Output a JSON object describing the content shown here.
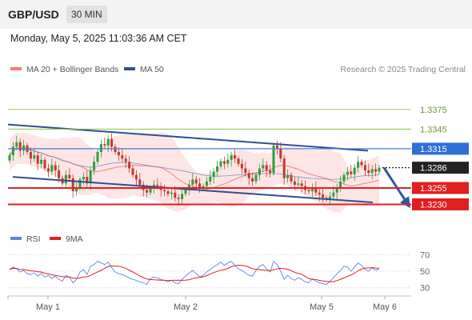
{
  "header": {
    "symbol": "GBP/USD",
    "interval": "30 MIN"
  },
  "datetime": "Monday, May 5, 2025 11:03:36 AM CET",
  "legend": {
    "ma20": "MA 20 + Bollinger Bands",
    "ma50": "MA 50",
    "credit": "Research © 2025 Trading Central"
  },
  "colors": {
    "up": "#2e9e3c",
    "down": "#c0392b",
    "ma20": "#f08080",
    "ma50": "#4a6fb5",
    "band": "#fde0e0",
    "channel": "#2f4f8f",
    "green_level": "#8fc14a",
    "blue_level": "#4a7bd8",
    "red_level": "#e02020",
    "arrow": "#2a5aa0",
    "rsi": "#5b86e5",
    "rsi_ma": "#e02020"
  },
  "chart_data": [
    {
      "type": "candlestick",
      "ylim": [
        1.32,
        1.342
      ],
      "x_ticks": [
        "May 1",
        "May 2",
        "May 5",
        "May 6"
      ],
      "series": [
        {
          "name": "MA 20 + Bollinger Bands"
        },
        {
          "name": "MA 50"
        }
      ],
      "ohlc_close": [
        1.3305,
        1.3318,
        1.3325,
        1.3312,
        1.332,
        1.331,
        1.33,
        1.3305,
        1.3292,
        1.3298,
        1.3285,
        1.328,
        1.329,
        1.3282,
        1.327,
        1.3262,
        1.3275,
        1.327,
        1.325,
        1.3255,
        1.3268,
        1.3272,
        1.3262,
        1.3282,
        1.3295,
        1.331,
        1.3322,
        1.332,
        1.333,
        1.3318,
        1.331,
        1.3305,
        1.33,
        1.3295,
        1.3285,
        1.3275,
        1.3268,
        1.326,
        1.3252,
        1.3248,
        1.3255,
        1.326,
        1.3258,
        1.3252,
        1.325,
        1.3246,
        1.3248,
        1.324,
        1.3238,
        1.3246,
        1.3252,
        1.326,
        1.3268,
        1.3262,
        1.3255,
        1.3258,
        1.3265,
        1.3272,
        1.328,
        1.3288,
        1.3296,
        1.3292,
        1.3298,
        1.3305,
        1.33,
        1.3292,
        1.3285,
        1.3278,
        1.327,
        1.3265,
        1.3275,
        1.3285,
        1.329,
        1.3282,
        1.3278,
        1.332,
        1.3315,
        1.33,
        1.327,
        1.3275,
        1.3265,
        1.326,
        1.3262,
        1.3258,
        1.3252,
        1.325,
        1.3255,
        1.3248,
        1.3245,
        1.324,
        1.3238,
        1.3242,
        1.3248,
        1.3256,
        1.3265,
        1.3275,
        1.328,
        1.3276,
        1.3286,
        1.3295,
        1.329,
        1.3282,
        1.3278,
        1.3284,
        1.328,
        1.3286
      ],
      "levels": [
        {
          "label": "1.3375",
          "value": 1.3375,
          "kind": "green"
        },
        {
          "label": "1.3345",
          "value": 1.3345,
          "kind": "green"
        },
        {
          "label": "1.3315",
          "value": 1.3315,
          "kind": "blue"
        },
        {
          "label": "1.3286",
          "value": 1.3286,
          "kind": "current"
        },
        {
          "label": "1.3255",
          "value": 1.3255,
          "kind": "red"
        },
        {
          "label": "1.3230",
          "value": 1.323,
          "kind": "red"
        }
      ]
    },
    {
      "type": "line",
      "ylim": [
        20,
        80
      ],
      "y_ticks": [
        "70",
        "50",
        "30"
      ],
      "series": [
        {
          "name": "RSI"
        },
        {
          "name": "9MA"
        }
      ],
      "rsi": [
        52,
        55,
        53,
        49,
        51,
        47,
        46,
        48,
        44,
        47,
        43,
        45,
        41,
        44,
        40,
        38,
        45,
        43,
        36,
        40,
        49,
        52,
        46,
        56,
        58,
        62,
        60,
        58,
        61,
        54,
        49,
        47,
        46,
        44,
        42,
        40,
        39,
        37,
        36,
        34,
        41,
        43,
        42,
        40,
        39,
        37,
        39,
        36,
        35,
        40,
        44,
        48,
        51,
        47,
        43,
        45,
        49,
        52,
        55,
        58,
        61,
        57,
        60,
        62,
        57,
        53,
        51,
        48,
        45,
        44,
        51,
        56,
        58,
        53,
        49,
        62,
        58,
        50,
        40,
        45,
        41,
        39,
        42,
        40,
        37,
        36,
        41,
        38,
        36,
        35,
        34,
        38,
        42,
        47,
        51,
        56,
        55,
        50,
        55,
        60,
        57,
        52,
        50,
        54,
        51,
        53
      ]
    }
  ]
}
